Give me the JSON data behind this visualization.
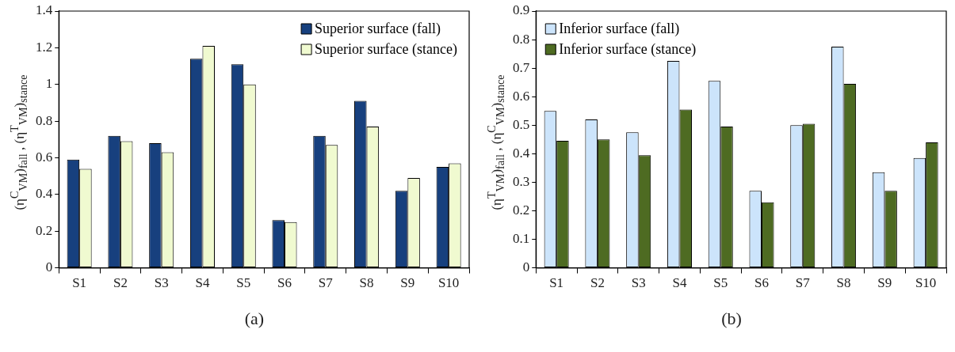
{
  "chart_data": [
    {
      "type": "bar",
      "ylabel": "(η$^{C}$$_{VM}$)$_{fall}$ , (η$^{T}$$_{VM}$)$_{stance}$",
      "annotations": [
        "(a)"
      ],
      "categories": [
        "S1",
        "S2",
        "S3",
        "S4",
        "S5",
        "S6",
        "S7",
        "S8",
        "S9",
        "S10"
      ],
      "series": [
        {
          "name": "Superior surface (fall)",
          "color": "#17407e",
          "values": [
            0.59,
            0.72,
            0.68,
            1.14,
            1.11,
            0.26,
            0.72,
            0.91,
            0.42,
            0.55
          ]
        },
        {
          "name": "Superior surface (stance)",
          "color": "#f0fad0",
          "values": [
            0.54,
            0.69,
            0.63,
            1.21,
            1.0,
            0.25,
            0.67,
            0.77,
            0.49,
            0.57
          ]
        }
      ],
      "ylim": [
        0,
        1.4
      ],
      "yticks": [
        0,
        0.2,
        0.4,
        0.6,
        0.8,
        1,
        1.2,
        1.4
      ],
      "grid": false,
      "legend": "top right"
    },
    {
      "type": "bar",
      "ylabel": "(η$^{T}$$_{VM}$)$_{fall}$ , (η$^{C}$$_{VM}$)$_{stance}$",
      "annotations": [
        "(b)"
      ],
      "categories": [
        "S1",
        "S2",
        "S3",
        "S4",
        "S5",
        "S6",
        "S7",
        "S8",
        "S9",
        "S10"
      ],
      "series": [
        {
          "name": "Inferior surface (fall)",
          "color": "#cce4fb",
          "values": [
            0.55,
            0.52,
            0.475,
            0.725,
            0.655,
            0.27,
            0.5,
            0.775,
            0.335,
            0.385
          ]
        },
        {
          "name": "Inferior surface (stance)",
          "color": "#4e6b22",
          "values": [
            0.445,
            0.45,
            0.395,
            0.555,
            0.495,
            0.23,
            0.505,
            0.645,
            0.27,
            0.44
          ]
        }
      ],
      "ylim": [
        0,
        0.9
      ],
      "yticks": [
        0,
        0.1,
        0.2,
        0.3,
        0.4,
        0.5,
        0.6,
        0.7,
        0.8,
        0.9
      ],
      "grid": false,
      "legend": "top left"
    }
  ]
}
